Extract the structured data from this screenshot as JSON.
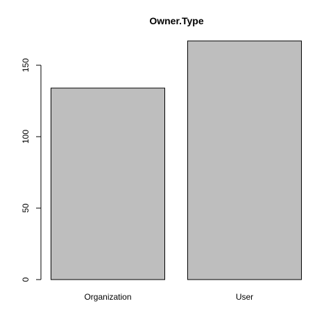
{
  "chart_data": {
    "type": "bar",
    "title": "Owner.Type",
    "xlabel": "",
    "ylabel": "",
    "categories": [
      "Organization",
      "User"
    ],
    "values": [
      134,
      167
    ],
    "ylim": [
      0,
      167
    ],
    "yticks": [
      0,
      50,
      100,
      150
    ],
    "yticks_text": [
      "0",
      "50",
      "100",
      "150"
    ],
    "bar_fill": "#bebebe",
    "bar_stroke": "#000000",
    "grid": false,
    "legend": "none"
  }
}
